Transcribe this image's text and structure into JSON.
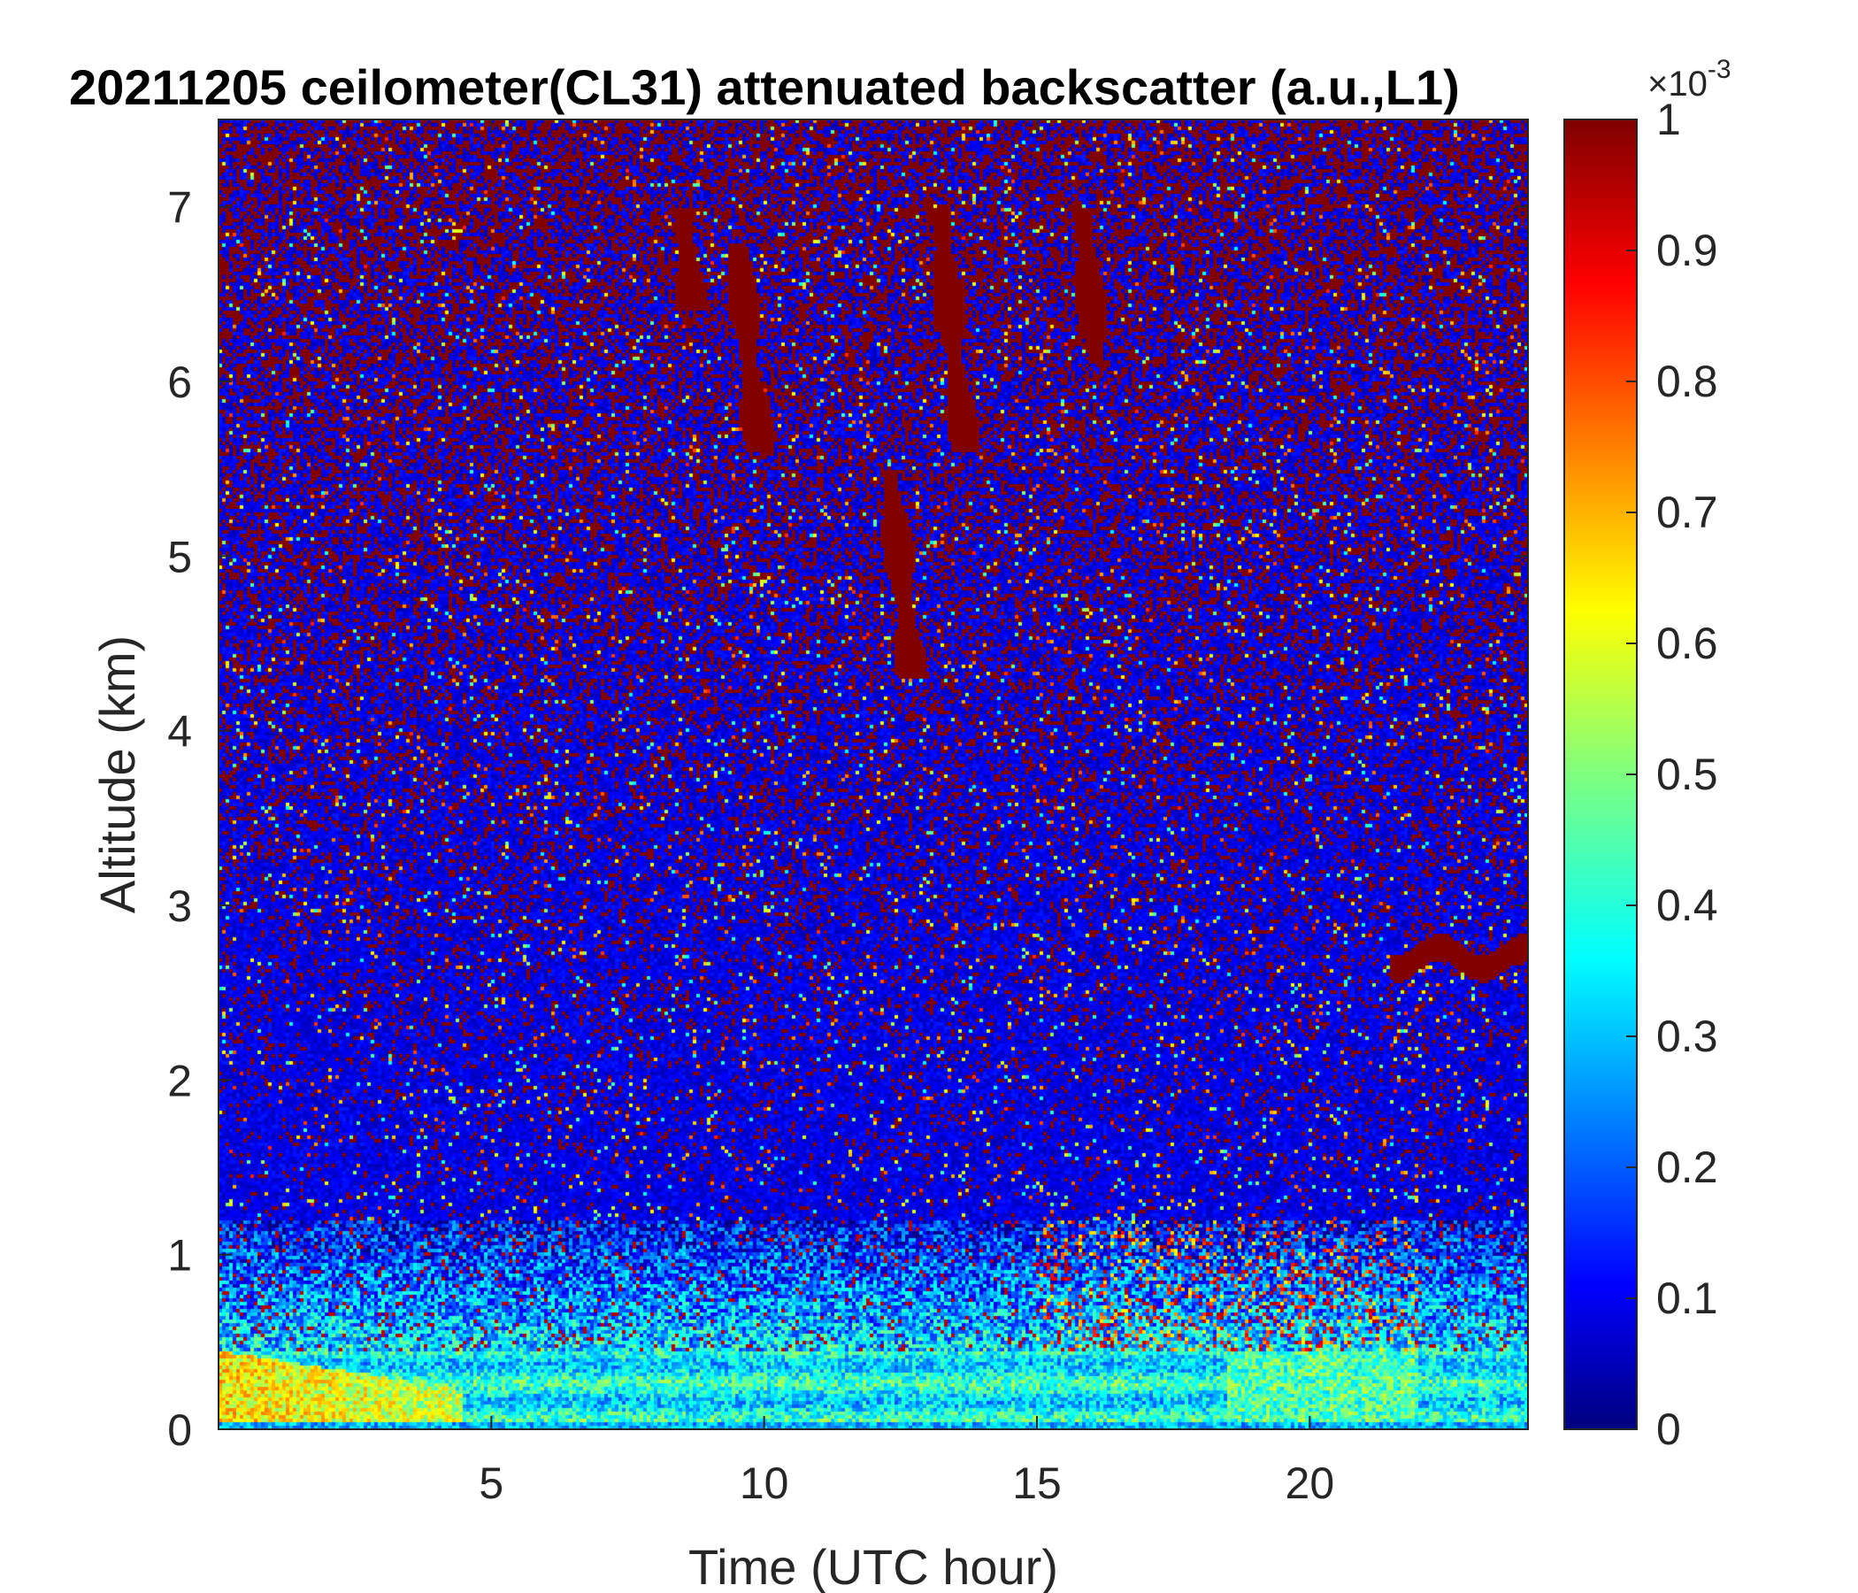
{
  "chart_data": {
    "type": "heatmap",
    "title": "20211205 ceilometer(CL31) attenuated backscatter (a.u.,L1)",
    "xlabel": "Time (UTC hour)",
    "ylabel": "Altitude (km)",
    "xlim": [
      0,
      24
    ],
    "ylim": [
      0,
      7.5
    ],
    "xticks": [
      5,
      10,
      15,
      20
    ],
    "yticks": [
      0,
      1,
      2,
      3,
      4,
      5,
      6,
      7
    ],
    "colorbar": {
      "colormap": "jet",
      "range": [
        0,
        1
      ],
      "ticks": [
        0,
        0.1,
        0.2,
        0.3,
        0.4,
        0.5,
        0.6,
        0.7,
        0.8,
        0.9,
        1
      ],
      "exponent_base": "×10",
      "exponent_power": "-3"
    },
    "features": {
      "surface_layer_top_km": 0.45,
      "high_backscatter_plumes_hours": [
        {
          "x": 8.5,
          "y_top": 7.0,
          "y_bottom": 6.4
        },
        {
          "x": 9.5,
          "y_top": 6.8,
          "y_bottom": 5.6
        },
        {
          "x": 12.3,
          "y_top": 5.5,
          "y_bottom": 4.3
        },
        {
          "x": 13.2,
          "y_top": 7.0,
          "y_bottom": 5.6
        },
        {
          "x": 15.8,
          "y_top": 7.0,
          "y_bottom": 6.1
        }
      ],
      "elevated_layer": {
        "x_start": 21.5,
        "x_end": 24,
        "altitude_km": 2.7
      }
    }
  }
}
